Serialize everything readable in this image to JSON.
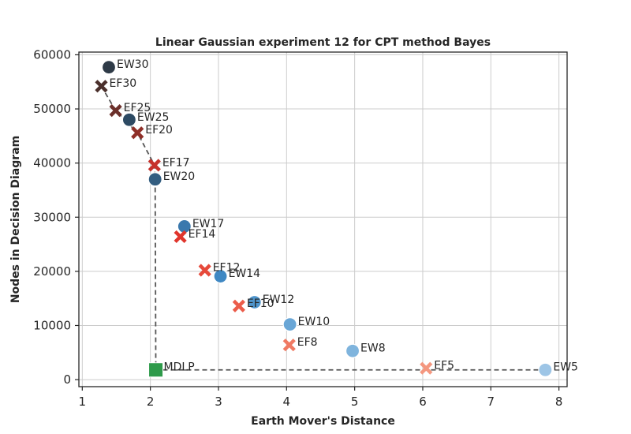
{
  "chart_data": {
    "type": "scatter",
    "title": "Linear Gaussian experiment 12 for CPT method Bayes",
    "xlabel": "Earth Mover's Distance",
    "ylabel": "Nodes in Decision Diagram",
    "xlim": [
      0.95,
      8.12
    ],
    "ylim": [
      -1300,
      60500
    ],
    "xticks": [
      "1",
      "2",
      "3",
      "4",
      "5",
      "6",
      "7",
      "8"
    ],
    "yticks": [
      "0",
      "10000",
      "20000",
      "30000",
      "40000",
      "50000",
      "60000"
    ],
    "grid": true,
    "series": [
      {
        "marker": "circle",
        "points": [
          {
            "label": "EW30",
            "x": 1.39,
            "y": 57700,
            "color": "#2e3a47"
          },
          {
            "label": "EW25",
            "x": 1.69,
            "y": 48000,
            "color": "#2d4a63"
          },
          {
            "label": "EW20",
            "x": 2.07,
            "y": 37000,
            "color": "#335d80"
          },
          {
            "label": "EW17",
            "x": 2.5,
            "y": 28300,
            "color": "#3a78ad"
          },
          {
            "label": "EW14",
            "x": 3.03,
            "y": 19100,
            "color": "#3f88c3"
          },
          {
            "label": "EW12",
            "x": 3.53,
            "y": 14300,
            "color": "#4f95cc"
          },
          {
            "label": "EW10",
            "x": 4.05,
            "y": 10200,
            "color": "#69a6d6"
          },
          {
            "label": "EW8",
            "x": 4.97,
            "y": 5300,
            "color": "#7fb4dd"
          },
          {
            "label": "EW5",
            "x": 7.8,
            "y": 1800,
            "color": "#9dc5e6"
          }
        ]
      },
      {
        "marker": "x",
        "points": [
          {
            "label": "EF30",
            "x": 1.28,
            "y": 54200,
            "color": "#4a2f2b"
          },
          {
            "label": "EF25",
            "x": 1.49,
            "y": 49700,
            "color": "#6b2f2a"
          },
          {
            "label": "EF20",
            "x": 1.81,
            "y": 45600,
            "color": "#8f2f28"
          },
          {
            "label": "EF17",
            "x": 2.06,
            "y": 39600,
            "color": "#c6312b"
          },
          {
            "label": "EF14",
            "x": 2.44,
            "y": 26400,
            "color": "#e0352c"
          },
          {
            "label": "EF12",
            "x": 2.8,
            "y": 20200,
            "color": "#e6493a"
          },
          {
            "label": "EF10",
            "x": 3.3,
            "y": 13600,
            "color": "#eb5c4a"
          },
          {
            "label": "EF8",
            "x": 4.04,
            "y": 6400,
            "color": "#f07a63"
          },
          {
            "label": "EF5",
            "x": 6.05,
            "y": 2100,
            "color": "#f4977f"
          }
        ]
      },
      {
        "marker": "square",
        "points": [
          {
            "label": "MDLP",
            "x": 2.08,
            "y": 1800,
            "color": "#2e9a4a"
          }
        ]
      }
    ],
    "pareto_front": [
      [
        1.28,
        54200
      ],
      [
        1.49,
        49700
      ],
      [
        1.81,
        45600
      ],
      [
        2.06,
        39600
      ],
      [
        2.07,
        37000
      ],
      [
        2.08,
        1800
      ],
      [
        7.8,
        1800
      ]
    ]
  }
}
